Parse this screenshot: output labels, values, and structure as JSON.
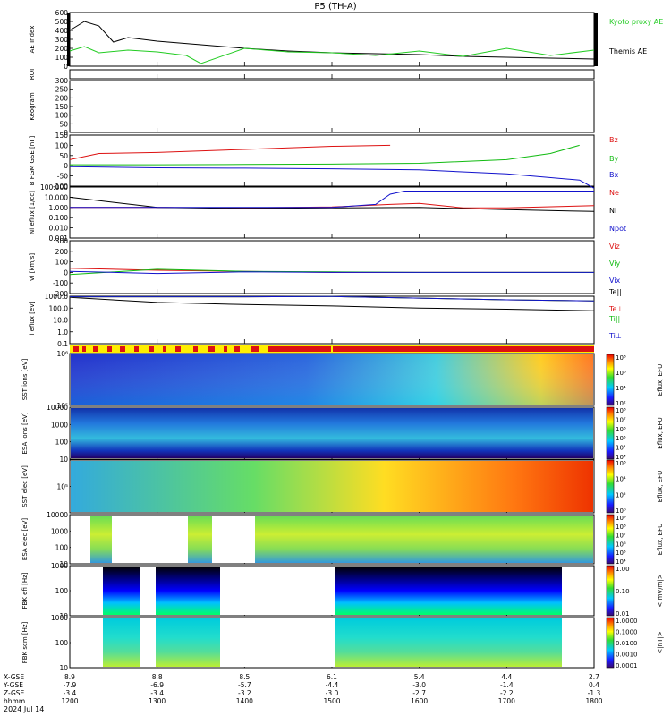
{
  "title": "P5  (TH-A)",
  "date": "2024 Jul 14",
  "colors": {
    "kyoto": "#22cc22",
    "themis": "#000000",
    "red": "#dd1111",
    "green": "#11bb11",
    "blue": "#1111cc",
    "flag_red": "#dd1111",
    "flag_yellow": "#ffee00"
  },
  "panels": [
    {
      "id": "ae",
      "label": "AE Index",
      "ticks": [
        "600",
        "500",
        "400",
        "300",
        "200",
        "100",
        "0"
      ]
    },
    {
      "id": "roi",
      "label": "ROI",
      "ticks": []
    },
    {
      "id": "keogram",
      "label": "Keogram",
      "ticks": [
        "300",
        "250",
        "200",
        "150",
        "100",
        "50",
        "0"
      ]
    },
    {
      "id": "bfgm",
      "label": "B FGM GSE [nT]",
      "ticks": [
        "150",
        "100",
        "50",
        "0",
        "-50",
        "-100"
      ]
    },
    {
      "id": "ni",
      "label": "Ni eflux [1/cc]",
      "ticks": [
        "100.000",
        "10.000",
        "1.000",
        "0.100",
        "0.010",
        "0.001"
      ]
    },
    {
      "id": "vi",
      "label": "Vi [km/s]",
      "ticks": [
        "300",
        "200",
        "100",
        "0",
        "-100",
        "-200"
      ]
    },
    {
      "id": "ti",
      "label": "Ti eflux [eV]",
      "ticks": [
        "1000.0",
        "100.0",
        "10.0",
        "1.0",
        "0.1"
      ]
    },
    {
      "id": "sst_ion",
      "label": "SST ions [eV]",
      "ticks": [
        "10⁶",
        "10⁵"
      ]
    },
    {
      "id": "esa_ion",
      "label": "ESA ions [eV]",
      "ticks": [
        "10000",
        "1000",
        "100",
        "10"
      ]
    },
    {
      "id": "sst_elec",
      "label": "SST elec [eV]",
      "ticks": [
        "10⁵"
      ]
    },
    {
      "id": "esa_elec",
      "label": "ESA elec [eV]",
      "ticks": [
        "10000",
        "1000",
        "100",
        "10"
      ]
    },
    {
      "id": "fbk_e",
      "label": "FBK efi [Hz]",
      "ticks": [
        "1000",
        "100",
        "10"
      ]
    },
    {
      "id": "fbk_b",
      "label": "FBK scm [Hz]",
      "ticks": [
        "1000",
        "100",
        "10"
      ]
    }
  ],
  "legends": {
    "ae": [
      "Kyoto proxy AE",
      "Themis AE"
    ],
    "bfgm": [
      "Bz",
      "By",
      "Bx"
    ],
    "ni": [
      "Ne",
      "Ni",
      "Npot"
    ],
    "vi": [
      "Viz",
      "Viy",
      "Vix"
    ],
    "ti": [
      "Te||",
      "Te⊥",
      "Ti||",
      "Ti⊥"
    ]
  },
  "colorbars": [
    {
      "label": "Eflux, EFU",
      "ticks": [
        "10⁸",
        "10⁶",
        "10⁴",
        "10²"
      ]
    },
    {
      "label": "Eflux, EFU",
      "ticks": [
        "10⁸",
        "10⁷",
        "10⁶",
        "10⁵",
        "10⁴",
        "10³"
      ]
    },
    {
      "label": "Eflux, EFU",
      "ticks": [
        "10⁶",
        "10⁴",
        "10²",
        "10⁰"
      ]
    },
    {
      "label": "Eflux, EFU",
      "ticks": [
        "10⁹",
        "10⁸",
        "10⁷",
        "10⁶",
        "10⁵",
        "10⁴"
      ]
    },
    {
      "label": "<|mV/m|>",
      "ticks": [
        "1.00",
        "0.10",
        "0.01"
      ]
    },
    {
      "label": "<|nT|>",
      "ticks": [
        "1.0000",
        "0.1000",
        "0.0100",
        "0.0010",
        "0.0001"
      ]
    }
  ],
  "x_axis": {
    "row_labels": [
      "X-GSE",
      "Y-GSE",
      "Z-GSE",
      "hhmm"
    ],
    "columns": [
      {
        "x": "8.9",
        "y": "-7.9",
        "z": "-3.4",
        "t": "1200"
      },
      {
        "x": "8.8",
        "y": "-6.9",
        "z": "-3.4",
        "t": "1300"
      },
      {
        "x": "8.5",
        "y": "-5.7",
        "z": "-3.2",
        "t": "1400"
      },
      {
        "x": "6.1",
        "y": "-4.4",
        "z": "-3.0",
        "t": "1500"
      },
      {
        "x": "5.4",
        "y": "-3.0",
        "z": "-2.7",
        "t": "1600"
      },
      {
        "x": "4.4",
        "y": "-1.4",
        "z": "-2.2",
        "t": "1700"
      },
      {
        "x": "2.7",
        "y": "0.4",
        "z": "-1.3",
        "t": "1800"
      }
    ]
  },
  "chart_data": {
    "type": "line",
    "x_unit": "hhmm",
    "x_range": [
      1200,
      1800
    ],
    "series": [
      {
        "name": "Themis AE",
        "panel": "ae",
        "x": [
          1200,
          1210,
          1220,
          1230,
          1240,
          1300,
          1330,
          1400,
          1430,
          1500,
          1530,
          1600,
          1630,
          1700,
          1730,
          1800
        ],
        "values": [
          400,
          500,
          450,
          270,
          320,
          280,
          240,
          200,
          170,
          150,
          140,
          130,
          110,
          100,
          90,
          80
        ]
      },
      {
        "name": "Kyoto proxy AE",
        "panel": "ae",
        "x": [
          1200,
          1210,
          1220,
          1240,
          1300,
          1320,
          1330,
          1400,
          1430,
          1500,
          1530,
          1600,
          1630,
          1700,
          1730,
          1800
        ],
        "values": [
          170,
          220,
          150,
          180,
          160,
          120,
          30,
          200,
          160,
          150,
          120,
          170,
          110,
          200,
          120,
          180
        ]
      },
      {
        "name": "Bz",
        "panel": "bfgm",
        "x": [
          1200,
          1220,
          1300,
          1400,
          1500,
          1540
        ],
        "values": [
          30,
          60,
          65,
          80,
          95,
          100
        ]
      },
      {
        "name": "By",
        "panel": "bfgm",
        "x": [
          1200,
          1300,
          1400,
          1500,
          1600,
          1700,
          1730,
          1750
        ],
        "values": [
          5,
          5,
          6,
          8,
          12,
          30,
          60,
          100
        ]
      },
      {
        "name": "Bx",
        "panel": "bfgm",
        "x": [
          1200,
          1300,
          1400,
          1500,
          1600,
          1700,
          1750,
          1800
        ],
        "values": [
          -5,
          -10,
          -12,
          -15,
          -20,
          -40,
          -70,
          -110
        ]
      },
      {
        "name": "Ne",
        "panel": "ni",
        "x": [
          1200,
          1300,
          1400,
          1500,
          1540,
          1600,
          1630,
          1700,
          1800
        ],
        "values": [
          1,
          1,
          0.9,
          1.1,
          2,
          2.5,
          0.9,
          0.9,
          1.5
        ]
      },
      {
        "name": "Ni",
        "panel": "ni",
        "x": [
          1200,
          1300,
          1400,
          1500,
          1600,
          1700,
          1800
        ],
        "values": [
          10,
          1,
          0.8,
          0.9,
          1,
          0.6,
          0.4
        ]
      },
      {
        "name": "Npot",
        "panel": "ni",
        "x": [
          1200,
          1400,
          1500,
          1530,
          1540,
          1550,
          1600,
          1800
        ],
        "values": [
          1,
          1,
          1,
          2,
          20,
          40,
          40,
          40
        ]
      },
      {
        "name": "Viz",
        "panel": "vi",
        "x": [
          1200,
          1300,
          1400,
          1500,
          1600,
          1700,
          1800
        ],
        "values": [
          40,
          20,
          10,
          0,
          0,
          0,
          0
        ]
      },
      {
        "name": "Viy",
        "panel": "vi",
        "x": [
          1200,
          1300,
          1400,
          1500,
          1600,
          1700,
          1800
        ],
        "values": [
          -20,
          30,
          10,
          5,
          0,
          0,
          0
        ]
      },
      {
        "name": "Vix",
        "panel": "vi",
        "x": [
          1200,
          1300,
          1400,
          1500,
          1600,
          1700,
          1800
        ],
        "values": [
          10,
          -10,
          5,
          0,
          0,
          0,
          0
        ]
      },
      {
        "name": "Te||",
        "panel": "ti",
        "x": [
          1200,
          1300,
          1400,
          1500,
          1600,
          1700,
          1800
        ],
        "values": [
          800,
          300,
          200,
          150,
          100,
          80,
          60
        ]
      },
      {
        "name": "Te⊥",
        "panel": "ti",
        "x": [
          1200,
          1300,
          1400,
          1500,
          1600,
          1700,
          1800
        ],
        "values": [
          900,
          900,
          900,
          950,
          700,
          500,
          400
        ]
      },
      {
        "name": "Ti||",
        "panel": "ti",
        "x": [
          1200,
          1300,
          1400,
          1500,
          1600,
          1700,
          1800
        ],
        "values": [
          900,
          900,
          900,
          950,
          700,
          500,
          400
        ]
      },
      {
        "name": "Ti⊥",
        "panel": "ti",
        "x": [
          1200,
          1300,
          1400,
          1500,
          1600,
          1700,
          1800
        ],
        "values": [
          900,
          900,
          900,
          950,
          700,
          500,
          400
        ]
      }
    ]
  }
}
